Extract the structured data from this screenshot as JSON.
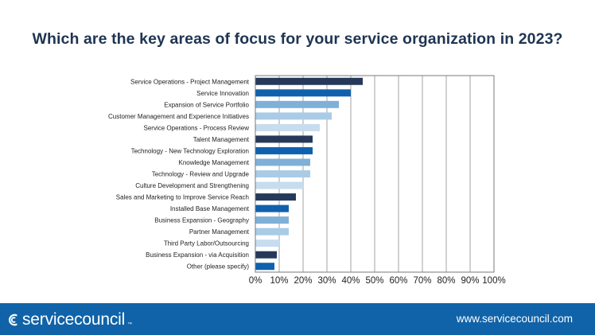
{
  "title": "Which are the key areas of focus for your service organization in 2023?",
  "footer": {
    "logo_text": "servicecouncil",
    "logo_tm": "™",
    "website": "www.servicecouncil.com"
  },
  "colors": {
    "navy": "#26395a",
    "blue": "#0f61ae",
    "mid_blue": "#7fb0d8",
    "light_blue": "#a9cbe6",
    "pale_blue": "#c7dcee",
    "footer_bg": "#1063a8",
    "title": "#1e3552"
  },
  "chart_data": {
    "type": "bar",
    "orientation": "horizontal",
    "categories": [
      "Service Operations - Project Management",
      "Service Innovation",
      "Expansion of Service Portfolio",
      "Customer Management and Experience Initiatives",
      "Service Operations - Process Review",
      "Talent Management",
      "Technology - New Technology Exploration",
      "Knowledge Management",
      "Technology - Review and Upgrade",
      "Culture Development and Strengthening",
      "Sales and Marketing to Improve Service Reach",
      "Installed Base Management",
      "Business Expansion - Geography",
      "Partner Management",
      "Third Party Labor/Outsourcing",
      "Business Expansion - via Acquisition",
      "Other (please specify)"
    ],
    "values": [
      45,
      40,
      35,
      32,
      27,
      24,
      24,
      23,
      23,
      20,
      17,
      14,
      14,
      14,
      10,
      9,
      8
    ],
    "bar_colors": [
      "navy",
      "blue",
      "mid_blue",
      "light_blue",
      "pale_blue",
      "navy",
      "blue",
      "mid_blue",
      "light_blue",
      "pale_blue",
      "navy",
      "blue",
      "mid_blue",
      "light_blue",
      "pale_blue",
      "navy",
      "blue"
    ],
    "x_ticks": [
      "0%",
      "10%",
      "20%",
      "30%",
      "40%",
      "50%",
      "60%",
      "70%",
      "80%",
      "90%",
      "100%"
    ],
    "xlim": [
      0,
      100
    ],
    "grid": true,
    "legend": "none"
  }
}
